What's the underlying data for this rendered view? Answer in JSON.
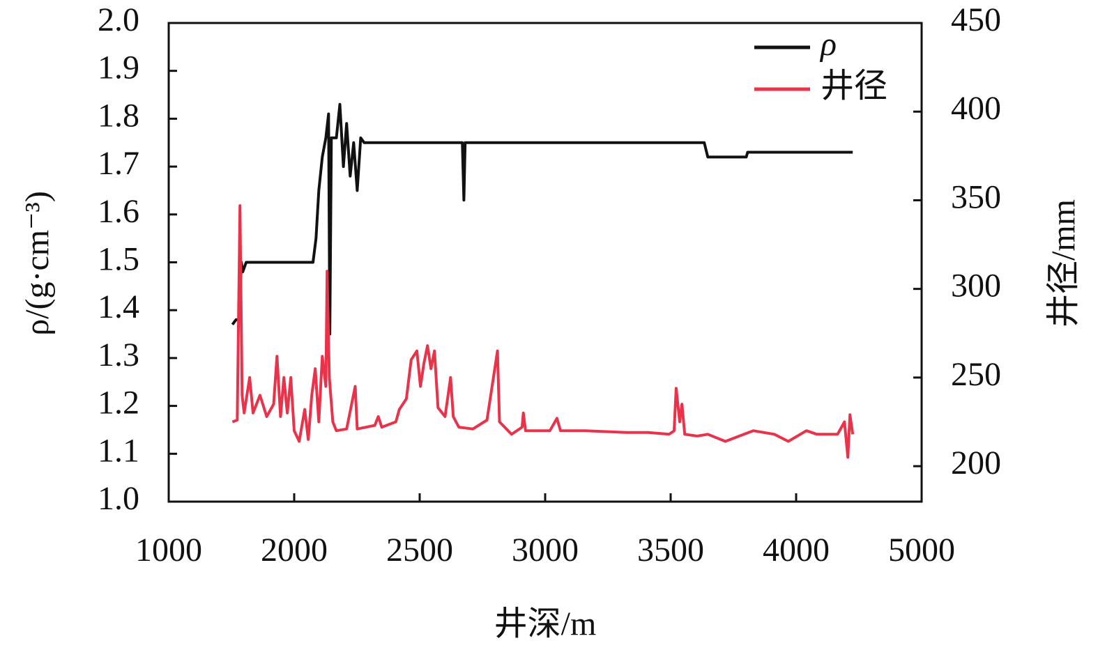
{
  "chart_data": {
    "type": "line",
    "xlabel": "井深/m",
    "ylabel": "ρ/(g·cm⁻³)",
    "y2label": "井径/mm",
    "xlim": [
      1000,
      5000
    ],
    "xticks": [
      1000,
      2000,
      2500,
      3000,
      3500,
      4000,
      5000
    ],
    "ylim": [
      1.0,
      2.0
    ],
    "yticks": [
      {
        "value": 1.0,
        "label": "1.0"
      },
      1.1,
      1.2,
      1.3,
      1.4,
      1.5,
      1.6,
      1.7,
      1.8,
      1.9,
      {
        "value": 2.0,
        "label": "2.0"
      }
    ],
    "y2lim": [
      180,
      450
    ],
    "y2ticks": [
      200,
      250,
      300,
      350,
      400,
      450
    ],
    "legend": "upper right",
    "series": [
      {
        "name": "ρ",
        "color": "#111111",
        "x": [
          1508,
          1536,
          1563,
          1579,
          1590,
          1617,
          2075,
          2087,
          2098,
          2112,
          2126,
          2137,
          2142,
          2148,
          2168,
          2182,
          2196,
          2209,
          2223,
          2237,
          2251,
          2265,
          2279,
          2670,
          2676,
          2681,
          3634,
          3648,
          3801,
          3807,
          4451
        ],
        "values": [
          1.37,
          1.38,
          1.38,
          1.5,
          1.48,
          1.5,
          1.5,
          1.55,
          1.65,
          1.72,
          1.76,
          1.81,
          1.35,
          1.76,
          1.76,
          1.83,
          1.7,
          1.79,
          1.68,
          1.75,
          1.65,
          1.76,
          1.75,
          1.75,
          1.63,
          1.75,
          1.75,
          1.72,
          1.72,
          1.73,
          1.73
        ]
      },
      {
        "name": "井径",
        "color": "#e8334a",
        "axis": "y2",
        "x": [
          1508,
          1546,
          1568,
          1585,
          1601,
          1645,
          1672,
          1727,
          1781,
          1836,
          1863,
          1891,
          1918,
          1945,
          1973,
          2000,
          2020,
          2042,
          2056,
          2070,
          2084,
          2098,
          2112,
          2126,
          2131,
          2140,
          2154,
          2168,
          2209,
          2243,
          2251,
          2321,
          2335,
          2349,
          2405,
          2419,
          2447,
          2466,
          2489,
          2503,
          2517,
          2531,
          2545,
          2559,
          2573,
          2601,
          2623,
          2634,
          2656,
          2712,
          2768,
          2810,
          2818,
          2866,
          2908,
          2913,
          2922,
          3019,
          3047,
          3061,
          3159,
          3327,
          3410,
          3494,
          3514,
          3522,
          3536,
          3545,
          3556,
          3606,
          3648,
          3718,
          3829,
          3913,
          3969,
          4082,
          4165,
          4330,
          4385,
          4412,
          4429,
          4451
        ],
        "values": [
          225,
          226,
          347,
          240,
          230,
          250,
          230,
          240,
          228,
          235,
          262,
          228,
          250,
          230,
          250,
          220,
          214,
          232,
          215,
          240,
          255,
          225,
          262,
          245,
          310,
          250,
          225,
          220,
          221,
          245,
          221,
          223,
          228,
          222,
          225,
          232,
          238,
          260,
          265,
          245,
          258,
          268,
          255,
          265,
          233,
          228,
          250,
          228,
          222,
          221,
          226,
          265,
          225,
          218,
          222,
          230,
          220,
          220,
          227,
          220,
          220,
          219,
          219,
          218,
          220,
          244,
          225,
          235,
          218,
          217,
          218,
          214,
          220,
          218,
          214,
          220,
          218,
          218,
          225,
          205,
          229,
          218
        ]
      }
    ]
  }
}
